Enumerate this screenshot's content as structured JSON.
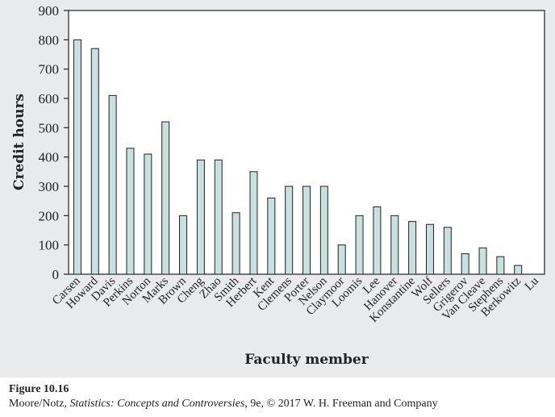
{
  "chart_data": {
    "type": "bar",
    "categories": [
      "Carsen",
      "Howard",
      "Davis",
      "Perkins",
      "Norton",
      "Marks",
      "Brown",
      "Cheng",
      "Zhao",
      "Smith",
      "Herbert",
      "Kent",
      "Clemens",
      "Porter",
      "Nelson",
      "Claymoor",
      "Loomis",
      "Lee",
      "Hanover",
      "Konstantine",
      "Wolf",
      "Sellers",
      "Grigerov",
      "Van Cleave",
      "Stephens",
      "Berkowitz",
      "Lu"
    ],
    "values": [
      800,
      770,
      610,
      430,
      410,
      520,
      200,
      390,
      390,
      210,
      350,
      260,
      300,
      300,
      300,
      100,
      200,
      230,
      200,
      180,
      170,
      160,
      70,
      90,
      60,
      30,
      0
    ],
    "xlabel": "Faculty member",
    "ylabel": "Credit hours",
    "ylim": [
      0,
      900
    ],
    "yticks": [
      0,
      100,
      200,
      300,
      400,
      500,
      600,
      700,
      800,
      900
    ],
    "grid": false,
    "colors": {
      "bar_fill": "#c8e0de",
      "bar_stroke": "#222222",
      "background": "#e8eaeb",
      "plot_area": "#ffffff"
    }
  },
  "caption": {
    "figure_label": "Figure 10.16",
    "source_prefix": "Moore/Notz, ",
    "source_title": "Statistics: Concepts and Controversies",
    "source_suffix": ", 9e, © 2017 W. H. Freeman and Company"
  }
}
